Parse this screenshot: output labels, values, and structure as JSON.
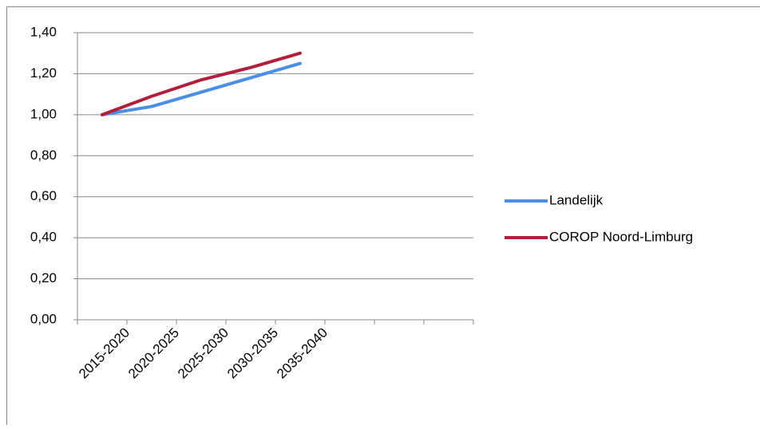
{
  "chart_data": {
    "type": "line",
    "categories": [
      "2015-2020",
      "2020-2025",
      "2025-2030",
      "2030-2035",
      "2035-2040",
      null,
      null,
      null
    ],
    "series": [
      {
        "name": "Landelijk",
        "color": "#4a8ee6",
        "values": [
          1.0,
          1.04,
          1.11,
          1.18,
          1.25,
          null,
          null,
          null
        ]
      },
      {
        "name": "COROP Noord-Limburg",
        "color": "#b21f3b",
        "values": [
          1.0,
          1.09,
          1.17,
          1.23,
          1.3,
          null,
          null,
          null
        ]
      }
    ],
    "ylim": [
      0,
      1.4
    ],
    "yticks": [
      {
        "value": 0,
        "label": "0,00"
      },
      {
        "value": 0.2,
        "label": "0,20"
      },
      {
        "value": 0.4,
        "label": "0,40"
      },
      {
        "value": 0.6,
        "label": "0,60"
      },
      {
        "value": 0.8,
        "label": "0,80"
      },
      {
        "value": 1.0,
        "label": "1,00"
      },
      {
        "value": 1.2,
        "label": "1,20"
      },
      {
        "value": 1.4,
        "label": "1,40"
      }
    ],
    "grid": true,
    "legend": "right"
  }
}
